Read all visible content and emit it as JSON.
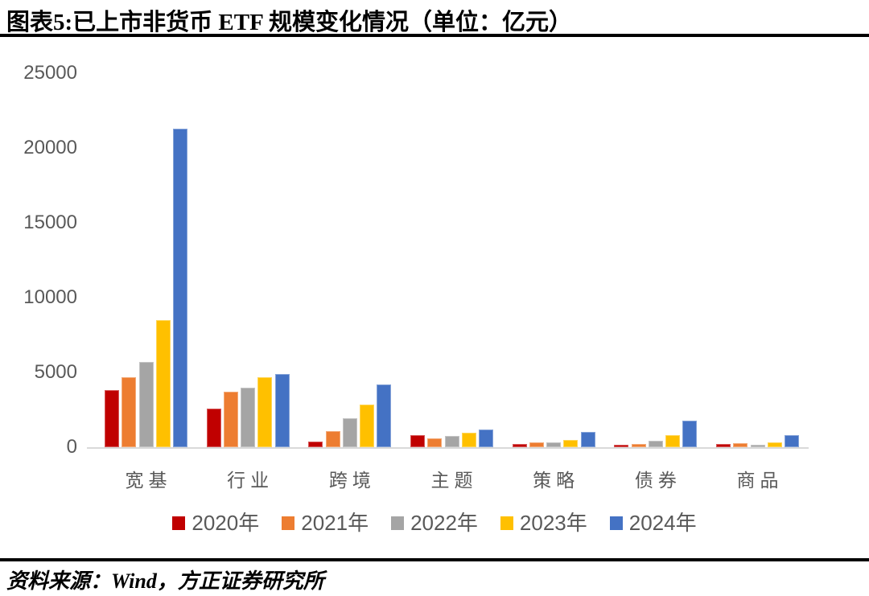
{
  "header": {
    "title": "图表5:已上市非货币 ETF 规模变化情况（单位：亿元）"
  },
  "footer": {
    "source": "资料来源：Wind，方正证券研究所"
  },
  "chart_data": {
    "type": "bar",
    "title": "已上市非货币 ETF 规模变化情况",
    "unit": "亿元",
    "categories": [
      "宽基",
      "行业",
      "跨境",
      "主题",
      "策略",
      "债券",
      "商品"
    ],
    "series": [
      {
        "name": "2020年",
        "color": "#C00000",
        "values": [
          3800,
          2600,
          400,
          800,
          200,
          150,
          200
        ]
      },
      {
        "name": "2021年",
        "color": "#ED7D31",
        "values": [
          4700,
          3700,
          1100,
          600,
          300,
          200,
          270
        ]
      },
      {
        "name": "2022年",
        "color": "#A5A5A5",
        "values": [
          5700,
          4000,
          1950,
          750,
          300,
          450,
          160
        ]
      },
      {
        "name": "2023年",
        "color": "#FFC000",
        "values": [
          8500,
          4700,
          2850,
          950,
          500,
          800,
          300
        ]
      },
      {
        "name": "2024年",
        "color": "#4472C4",
        "values": [
          21300,
          4900,
          4200,
          1200,
          1000,
          1800,
          780
        ]
      }
    ],
    "yticks": [
      "25000",
      "20000",
      "15000",
      "10000",
      "5000",
      "0"
    ],
    "ylim": [
      0,
      25000
    ],
    "grid": false,
    "legend_position": "bottom",
    "axis_color": "#595959",
    "baseline_color": "#D9D9D9"
  }
}
